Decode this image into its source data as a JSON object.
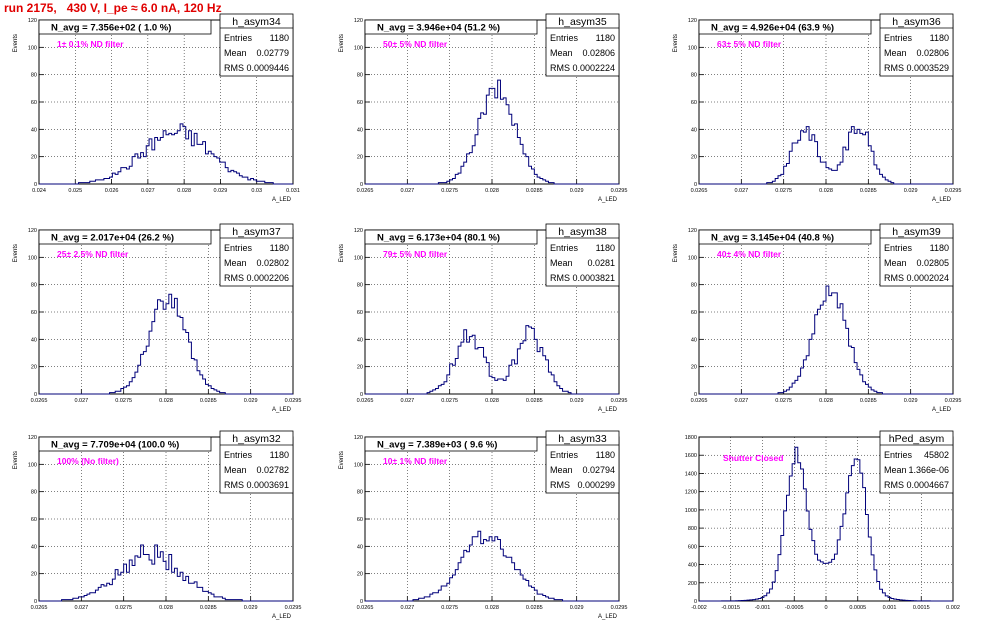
{
  "page_title": "run 2175,   430 V, I_pe ≈ 6.0 nA, 120 Hz",
  "colors": {
    "title": "#e00000",
    "annotation": "#ff00ff",
    "histogram": "#00007a"
  },
  "chart_data": [
    {
      "type": "histogram",
      "name": "h_asym34",
      "navg_text": "N_avg = 7.356e+02 ( 1.0 %)",
      "annotation": "1± 0.1% ND filter",
      "stats": {
        "Entries": "1180",
        "Mean": "0.02779",
        "RMS": "0.0009446"
      },
      "ylabel": "Events",
      "xlabel": "A_LED",
      "grid": true,
      "xlim": [
        0.024,
        0.031
      ],
      "ylim": [
        0,
        120
      ],
      "xticks": [
        "0.024",
        "0.025",
        "0.026",
        "0.027",
        "0.028",
        "0.029",
        "0.03",
        "0.031"
      ],
      "yticks": [
        "0",
        "20",
        "40",
        "60",
        "80",
        "100",
        "120"
      ],
      "shape": {
        "modes": [
          {
            "mean": 0.02779,
            "sigma": 0.00094,
            "amp": 38
          }
        ],
        "noise": 0.2
      }
    },
    {
      "type": "histogram",
      "name": "h_asym35",
      "navg_text": "N_avg = 3.946e+04 (51.2 %)",
      "annotation": "50± 5% ND filter",
      "stats": {
        "Entries": "1180",
        "Mean": "0.02806",
        "RMS": "0.0002224"
      },
      "ylabel": "Events",
      "xlabel": "A_LED",
      "grid": true,
      "xlim": [
        0.0265,
        0.0295
      ],
      "ylim": [
        0,
        120
      ],
      "xticks": [
        "0.0265",
        "0.027",
        "0.0275",
        "0.028",
        "0.0285",
        "0.029",
        "0.0295"
      ],
      "yticks": [
        "0",
        "20",
        "40",
        "60",
        "80",
        "100",
        "120"
      ],
      "shape": {
        "modes": [
          {
            "mean": 0.02806,
            "sigma": 0.00022,
            "amp": 68
          }
        ],
        "noise": 0.12
      }
    },
    {
      "type": "histogram",
      "name": "h_asym36",
      "navg_text": "N_avg = 4.926e+04 (63.9 %)",
      "annotation": "63± 5% ND filter",
      "stats": {
        "Entries": "1180",
        "Mean": "0.02806",
        "RMS": "0.0003529"
      },
      "ylabel": "Events",
      "xlabel": "A_LED",
      "grid": true,
      "xlim": [
        0.0265,
        0.0295
      ],
      "ylim": [
        0,
        120
      ],
      "xticks": [
        "0.0265",
        "0.027",
        "0.0275",
        "0.028",
        "0.0285",
        "0.029",
        "0.0295"
      ],
      "yticks": [
        "0",
        "20",
        "40",
        "60",
        "80",
        "100",
        "120"
      ],
      "shape": {
        "modes": [
          {
            "mean": 0.02775,
            "sigma": 0.00015,
            "amp": 42
          },
          {
            "mean": 0.02838,
            "sigma": 0.00015,
            "amp": 42
          }
        ],
        "noise": 0.15
      }
    },
    {
      "type": "histogram",
      "name": "h_asym37",
      "navg_text": "N_avg = 2.017e+04 (26.2 %)",
      "annotation": "25± 2.5% ND filter",
      "stats": {
        "Entries": "1180",
        "Mean": "0.02802",
        "RMS": "0.0002206"
      },
      "ylabel": "Events",
      "xlabel": "A_LED",
      "grid": true,
      "xlim": [
        0.0265,
        0.0295
      ],
      "ylim": [
        0,
        120
      ],
      "xticks": [
        "0.0265",
        "0.027",
        "0.0275",
        "0.028",
        "0.0285",
        "0.029",
        "0.0295"
      ],
      "yticks": [
        "0",
        "20",
        "40",
        "60",
        "80",
        "100",
        "120"
      ],
      "shape": {
        "modes": [
          {
            "mean": 0.02802,
            "sigma": 0.00022,
            "amp": 70
          }
        ],
        "noise": 0.12
      }
    },
    {
      "type": "histogram",
      "name": "h_asym38",
      "navg_text": "N_avg = 6.173e+04 (80.1 %)",
      "annotation": "79± 5% ND filter",
      "stats": {
        "Entries": "1180",
        "Mean": "0.0281",
        "RMS": "0.0003821"
      },
      "ylabel": "Events",
      "xlabel": "A_LED",
      "grid": true,
      "xlim": [
        0.0265,
        0.0295
      ],
      "ylim": [
        0,
        120
      ],
      "xticks": [
        "0.0265",
        "0.027",
        "0.0275",
        "0.028",
        "0.0285",
        "0.029",
        "0.0295"
      ],
      "yticks": [
        "0",
        "20",
        "40",
        "60",
        "80",
        "100",
        "120"
      ],
      "shape": {
        "modes": [
          {
            "mean": 0.02773,
            "sigma": 0.00017,
            "amp": 44
          },
          {
            "mean": 0.02845,
            "sigma": 0.00017,
            "amp": 44
          }
        ],
        "noise": 0.2
      }
    },
    {
      "type": "histogram",
      "name": "h_asym39",
      "navg_text": "N_avg = 3.145e+04 (40.8 %)",
      "annotation": "40± 4% ND filter",
      "stats": {
        "Entries": "1180",
        "Mean": "0.02805",
        "RMS": "0.0002024"
      },
      "ylabel": "Events",
      "xlabel": "A_LED",
      "grid": true,
      "xlim": [
        0.0265,
        0.0295
      ],
      "ylim": [
        0,
        120
      ],
      "xticks": [
        "0.0265",
        "0.027",
        "0.0275",
        "0.028",
        "0.0285",
        "0.029",
        "0.0295"
      ],
      "yticks": [
        "0",
        "20",
        "40",
        "60",
        "80",
        "100",
        "120"
      ],
      "shape": {
        "modes": [
          {
            "mean": 0.02805,
            "sigma": 0.0002,
            "amp": 76
          }
        ],
        "noise": 0.1
      }
    },
    {
      "type": "histogram",
      "name": "h_asym32",
      "navg_text": "N_avg = 7.709e+04 (100.0 %)",
      "annotation": "100% (No filter)",
      "stats": {
        "Entries": "1180",
        "Mean": "0.02782",
        "RMS": "0.0003691"
      },
      "ylabel": "Events",
      "xlabel": "A_LED",
      "grid": true,
      "xlim": [
        0.0265,
        0.0295
      ],
      "ylim": [
        0,
        120
      ],
      "xticks": [
        "0.0265",
        "0.027",
        "0.0275",
        "0.028",
        "0.0285",
        "0.029",
        "0.0295"
      ],
      "yticks": [
        "0",
        "20",
        "40",
        "60",
        "80",
        "100",
        "120"
      ],
      "shape": {
        "modes": [
          {
            "mean": 0.02782,
            "sigma": 0.00037,
            "amp": 34
          }
        ],
        "noise": 0.25
      }
    },
    {
      "type": "histogram",
      "name": "h_asym33",
      "navg_text": "N_avg = 7.389e+03 ( 9.6 %)",
      "annotation": "10± 1% ND filter",
      "stats": {
        "Entries": "1180",
        "Mean": "0.02794",
        "RMS": "0.000299"
      },
      "ylabel": "Events",
      "xlabel": "A_LED",
      "grid": true,
      "xlim": [
        0.0265,
        0.0295
      ],
      "ylim": [
        0,
        120
      ],
      "xticks": [
        "0.0265",
        "0.027",
        "0.0275",
        "0.028",
        "0.0285",
        "0.029",
        "0.0295"
      ],
      "yticks": [
        "0",
        "20",
        "40",
        "60",
        "80",
        "100",
        "120"
      ],
      "shape": {
        "modes": [
          {
            "mean": 0.02794,
            "sigma": 0.0003,
            "amp": 48
          }
        ],
        "noise": 0.12
      }
    },
    {
      "type": "histogram",
      "name": "hPed_asym",
      "navg_text": "",
      "annotation": "Shutter Closed",
      "stats": {
        "Entries": "45802",
        "Mean": "1.366e-06",
        "RMS": "0.0004667"
      },
      "ylabel": "",
      "xlabel": "",
      "grid": true,
      "xlim": [
        -0.002,
        0.002
      ],
      "ylim": [
        0,
        2000
      ],
      "xticks": [
        "-0.002",
        "-0.0015",
        "-0.001",
        "-0.0005",
        "0",
        "0.0005",
        "0.001",
        "0.0015",
        "0.002"
      ],
      "yticks": [
        "0",
        "200",
        "400",
        "600",
        "800",
        "1000",
        "1200",
        "1400",
        "1600",
        "1800"
      ],
      "shape": {
        "modes": [
          {
            "mean": -0.00048,
            "sigma": 0.00016,
            "amp": 1550
          },
          {
            "mean": 0.00048,
            "sigma": 0.00016,
            "amp": 1550
          },
          {
            "mean": 0.0,
            "sigma": 0.00045,
            "amp": 420
          }
        ],
        "noise": 0.05
      }
    }
  ]
}
